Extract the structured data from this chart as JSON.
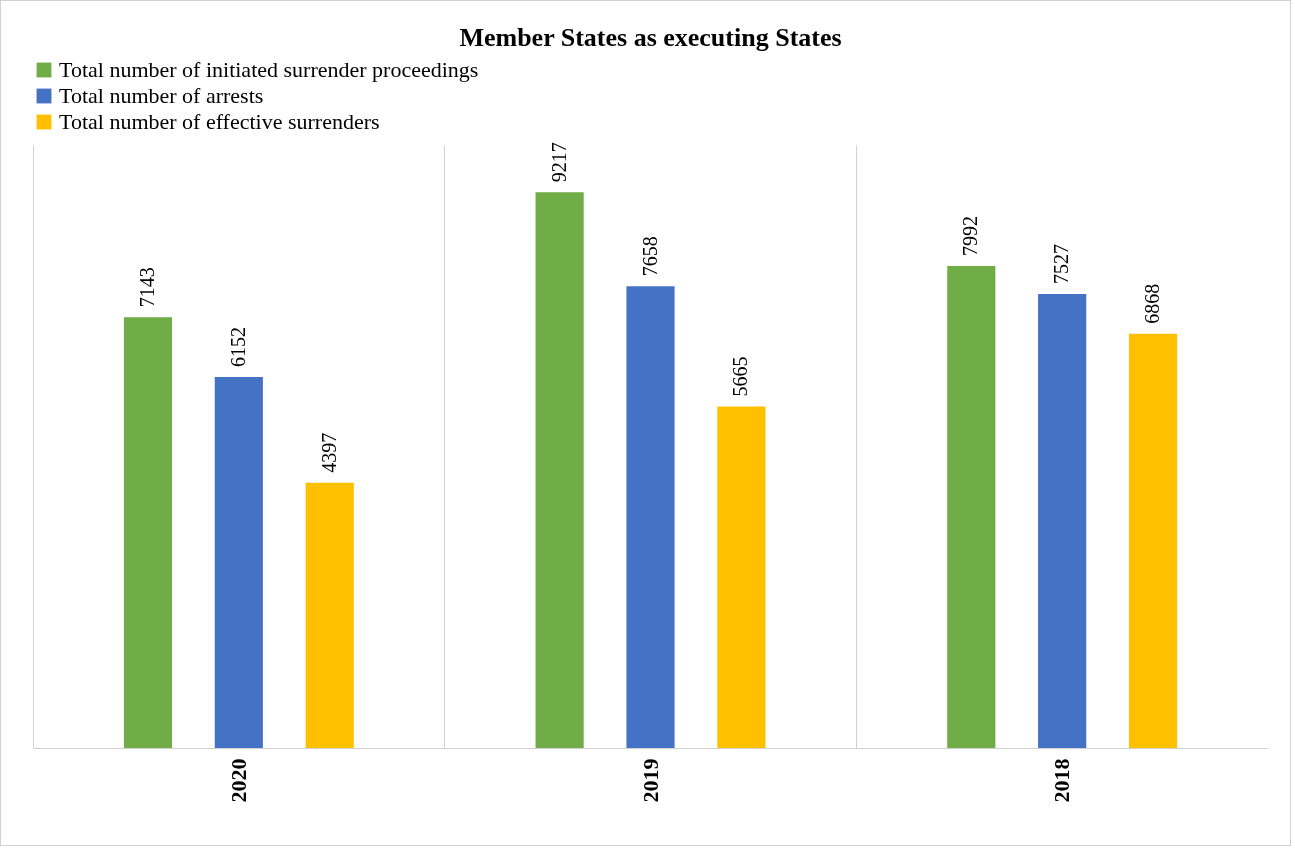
{
  "chart_data": {
    "type": "bar",
    "title": "Member States as executing States",
    "categories": [
      "2020",
      "2019",
      "2018"
    ],
    "series": [
      {
        "name": "Total number of initiated surrender proceedings",
        "color": "#70ad47",
        "values": [
          7143,
          9217,
          7992
        ]
      },
      {
        "name": "Total number of arrests",
        "color": "#4472c4",
        "values": [
          6152,
          7658,
          7527
        ]
      },
      {
        "name": "Total number of effective surrenders",
        "color": "#ffc000",
        "values": [
          4397,
          5665,
          6868
        ]
      }
    ],
    "data_labels": true,
    "grid": "x",
    "legend": "top",
    "tick_labels": "x"
  }
}
